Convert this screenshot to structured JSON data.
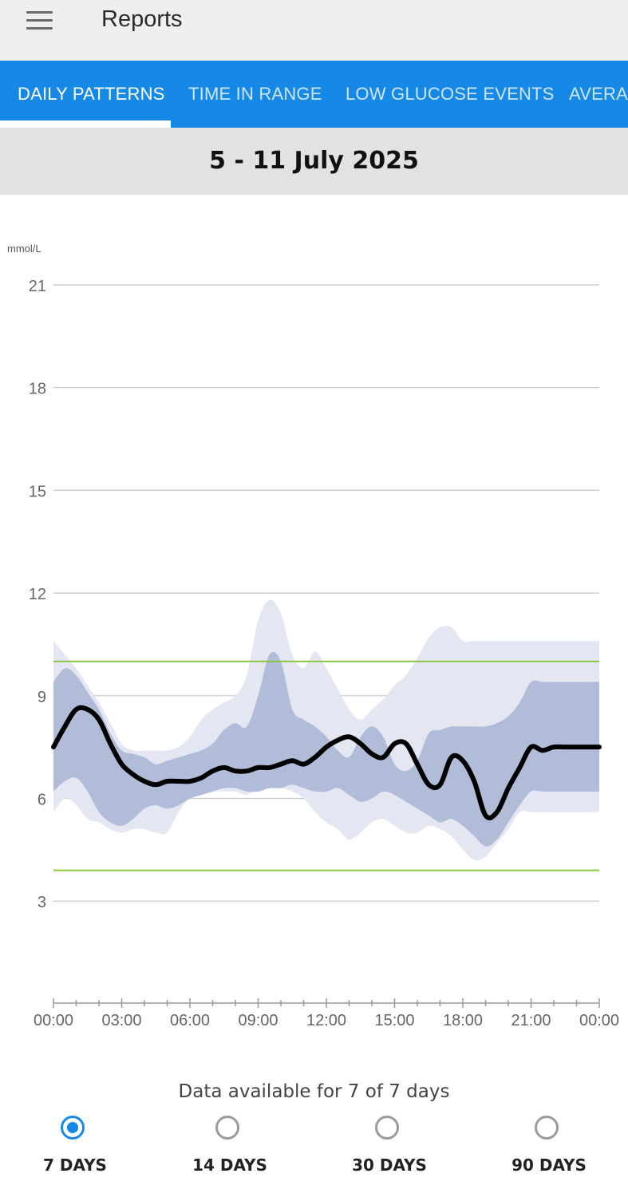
{
  "appbar": {
    "title": "Reports",
    "menu_icon": "hamburger-menu-icon"
  },
  "tabs": [
    {
      "label": "DAILY PATTERNS",
      "active": true
    },
    {
      "label": "TIME IN RANGE",
      "active": false
    },
    {
      "label": "LOW GLUCOSE EVENTS",
      "active": false
    },
    {
      "label": "AVERAGE GLUCOSE",
      "active": false
    }
  ],
  "date_range": "5 - 11 July 2025",
  "chart_data": {
    "type": "area",
    "ylabel": "mmol/L",
    "ylim": [
      0,
      21
    ],
    "yticks": [
      "21",
      "18",
      "15",
      "12",
      "9",
      "6",
      "3"
    ],
    "xticks": [
      "00:00",
      "03:00",
      "06:00",
      "09:00",
      "12:00",
      "15:00",
      "18:00",
      "21:00",
      "00:00"
    ],
    "xlim_hours": [
      0,
      24
    ],
    "target_range": {
      "low": 3.9,
      "high": 10.0,
      "color": "#8cc63f"
    },
    "grid": true,
    "colors": {
      "median": "#000000",
      "iqr": "#b1bcd9",
      "outer": "#e4e7f2"
    },
    "x_hours": [
      0,
      0.5,
      1,
      1.5,
      2,
      2.5,
      3,
      3.5,
      4,
      4.5,
      5,
      5.5,
      6,
      6.5,
      7,
      7.5,
      8,
      8.5,
      9,
      9.5,
      10,
      10.5,
      11,
      11.5,
      12,
      12.5,
      13,
      13.5,
      14,
      14.5,
      15,
      15.5,
      16,
      16.5,
      17,
      17.5,
      18,
      18.5,
      19,
      19.5,
      20,
      20.5,
      21,
      21.5,
      22,
      22.5,
      23,
      23.5,
      24
    ],
    "median": [
      7.5,
      8.1,
      8.6,
      8.6,
      8.3,
      7.6,
      7.0,
      6.7,
      6.5,
      6.4,
      6.5,
      6.5,
      6.5,
      6.6,
      6.8,
      6.9,
      6.8,
      6.8,
      6.9,
      6.9,
      7.0,
      7.1,
      7.0,
      7.2,
      7.5,
      7.7,
      7.8,
      7.6,
      7.3,
      7.2,
      7.6,
      7.6,
      7.0,
      6.4,
      6.4,
      7.2,
      7.1,
      6.5,
      5.5,
      5.6,
      6.3,
      6.9,
      7.5,
      7.4,
      7.5,
      7.5,
      7.5,
      7.5,
      7.5
    ],
    "p25": [
      6.2,
      6.5,
      6.6,
      6.2,
      5.6,
      5.3,
      5.2,
      5.4,
      5.7,
      5.8,
      5.7,
      5.8,
      6.0,
      6.1,
      6.2,
      6.3,
      6.3,
      6.2,
      6.2,
      6.3,
      6.3,
      6.4,
      6.3,
      6.2,
      6.2,
      6.3,
      6.1,
      5.9,
      6.0,
      6.2,
      6.1,
      5.9,
      5.7,
      5.5,
      5.3,
      5.4,
      5.2,
      4.9,
      4.6,
      4.8,
      5.3,
      5.8,
      6.2,
      6.2,
      6.2,
      6.2,
      6.2,
      6.2,
      6.2
    ],
    "p75": [
      9.4,
      9.8,
      9.6,
      9.1,
      8.6,
      7.9,
      7.4,
      7.3,
      7.2,
      7.0,
      7.1,
      7.2,
      7.3,
      7.4,
      7.6,
      8.0,
      8.2,
      8.1,
      9.0,
      10.2,
      10.0,
      8.6,
      8.3,
      8.1,
      7.8,
      7.4,
      7.2,
      7.8,
      8.1,
      7.8,
      7.0,
      6.8,
      7.1,
      7.9,
      8.0,
      8.1,
      8.1,
      8.1,
      8.1,
      8.2,
      8.4,
      8.8,
      9.4,
      9.4,
      9.4,
      9.4,
      9.4,
      9.4,
      9.4
    ],
    "p10": [
      5.6,
      6.0,
      5.8,
      5.4,
      5.3,
      5.1,
      5.0,
      5.1,
      5.1,
      5.0,
      5.0,
      5.6,
      6.0,
      6.1,
      6.2,
      6.2,
      6.2,
      6.1,
      6.3,
      6.3,
      6.3,
      6.2,
      6.0,
      5.6,
      5.3,
      5.1,
      4.8,
      5.0,
      5.3,
      5.4,
      5.2,
      5.0,
      5.0,
      5.2,
      5.1,
      4.9,
      4.5,
      4.2,
      4.3,
      4.7,
      5.1,
      5.6,
      5.6,
      5.6,
      5.6,
      5.6,
      5.6,
      5.6,
      5.6
    ],
    "p90": [
      10.6,
      10.2,
      9.8,
      9.3,
      8.8,
      8.2,
      7.6,
      7.4,
      7.4,
      7.4,
      7.4,
      7.5,
      7.8,
      8.3,
      8.6,
      8.8,
      9.0,
      9.6,
      11.2,
      11.8,
      11.4,
      10.2,
      9.8,
      10.3,
      9.8,
      9.2,
      8.6,
      8.3,
      8.6,
      8.9,
      9.3,
      9.6,
      10.1,
      10.7,
      11.0,
      11.0,
      10.6,
      10.6,
      10.6,
      10.6,
      10.6,
      10.6,
      10.6,
      10.6,
      10.6,
      10.6,
      10.6,
      10.6,
      10.6
    ]
  },
  "availability_text": "Data available for 7 of 7 days",
  "range_options": [
    {
      "label": "7 DAYS",
      "selected": true
    },
    {
      "label": "14 DAYS",
      "selected": false
    },
    {
      "label": "30 DAYS",
      "selected": false
    },
    {
      "label": "90 DAYS",
      "selected": false
    }
  ]
}
